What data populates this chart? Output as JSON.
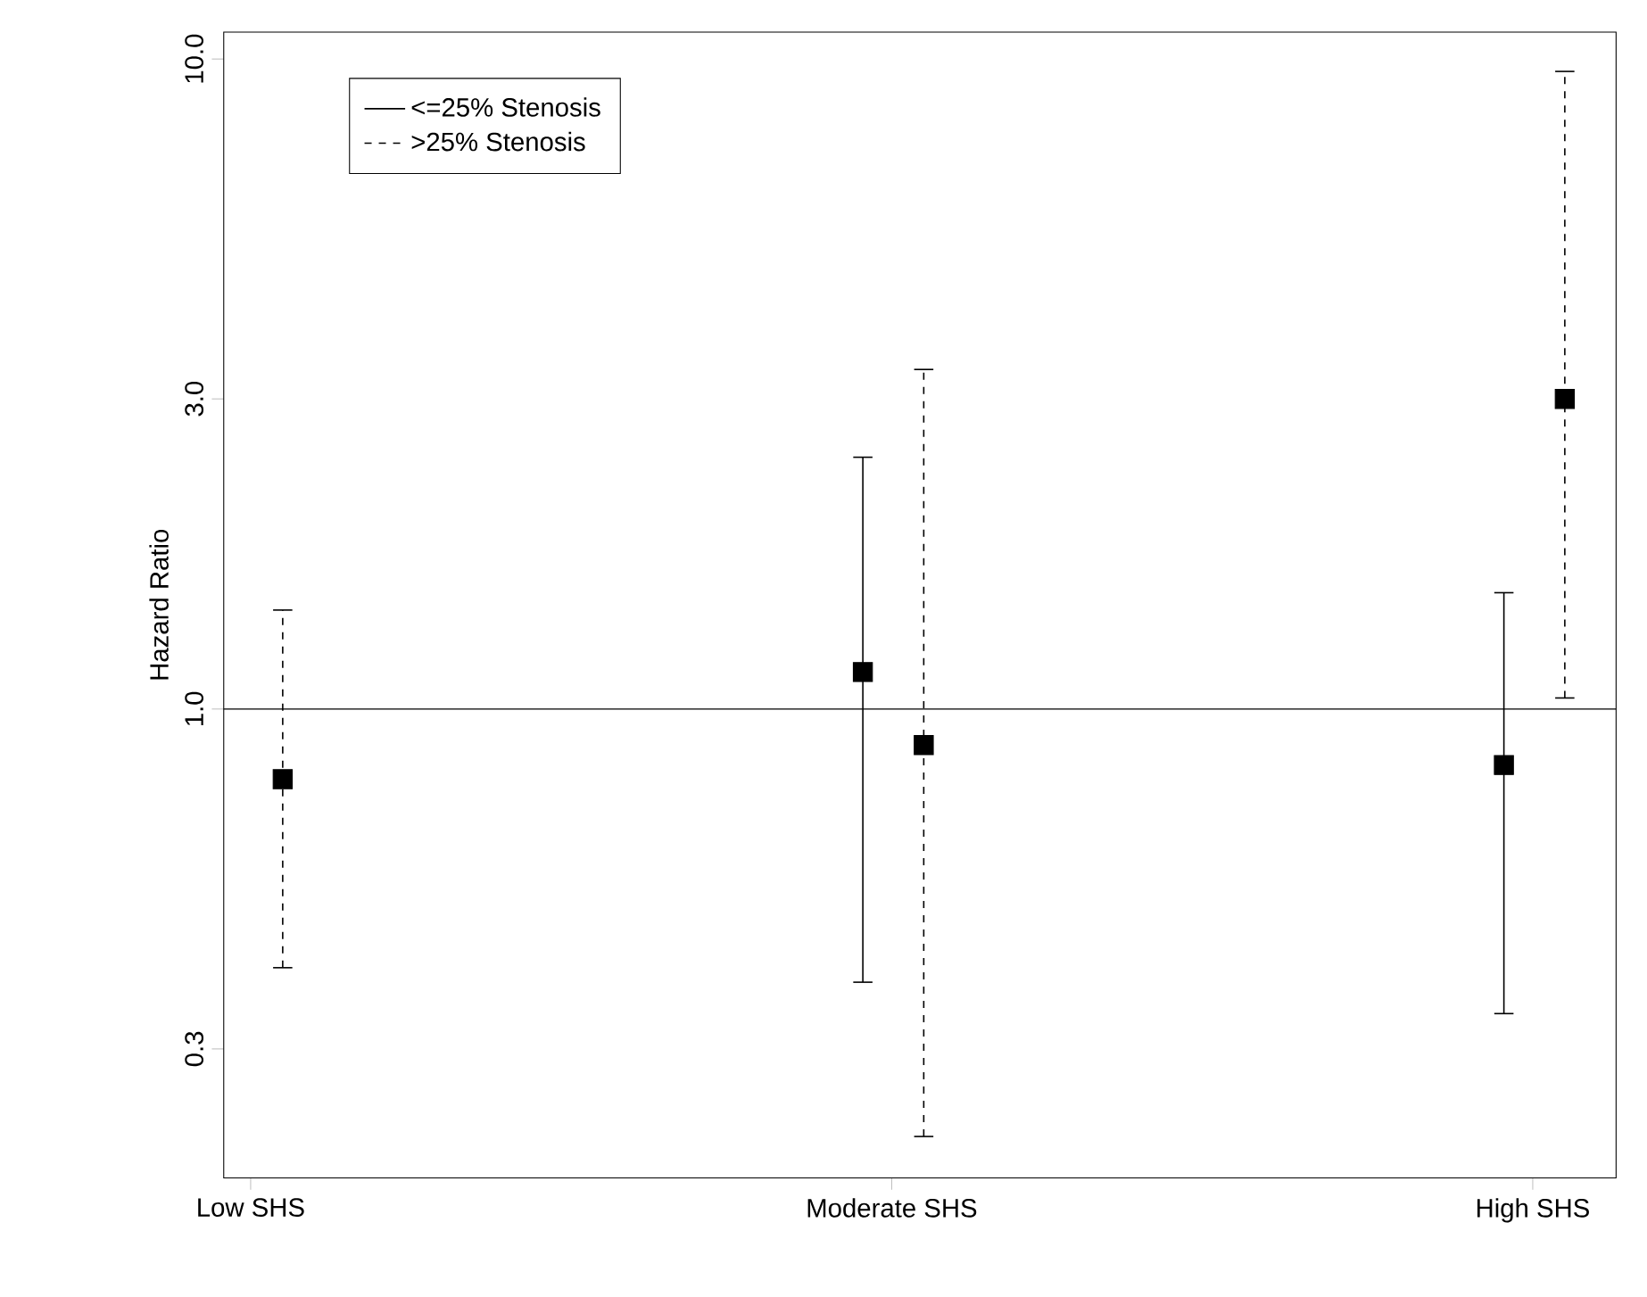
{
  "chart_data": {
    "type": "scatter",
    "ylabel": "Hazard Ratio",
    "categories": [
      "Low SHS",
      "Moderate SHS",
      "High SHS"
    ],
    "series": [
      {
        "name": "<=25% Stenosis",
        "color": "#000000",
        "line_style": "solid",
        "values": [
          null,
          1.14,
          0.82
        ],
        "errors": [
          null,
          [
            0.38,
            2.44
          ],
          [
            0.34,
            1.51
          ]
        ]
      },
      {
        "name": ">25% Stenosis",
        "color": "#000000",
        "line_style": "dashed",
        "values": [
          0.78,
          0.88,
          3.0
        ],
        "errors": [
          [
            0.4,
            1.42
          ],
          [
            0.22,
            3.33
          ],
          [
            1.04,
            9.57
          ]
        ]
      }
    ],
    "log": "y",
    "ylim": [
      0.19,
      11
    ],
    "yticks": [
      {
        "value": 0.3,
        "label": "0.3"
      },
      {
        "value": 1,
        "label": "1.0"
      },
      {
        "value": 3,
        "label": "3.0"
      },
      {
        "value": 10,
        "label": "10.0"
      }
    ],
    "ref_lines": [
      {
        "axis": "y",
        "value": 1,
        "color": "#000000",
        "line_style": "solid"
      }
    ],
    "marker": "square",
    "legend": "top left",
    "grid": false
  }
}
